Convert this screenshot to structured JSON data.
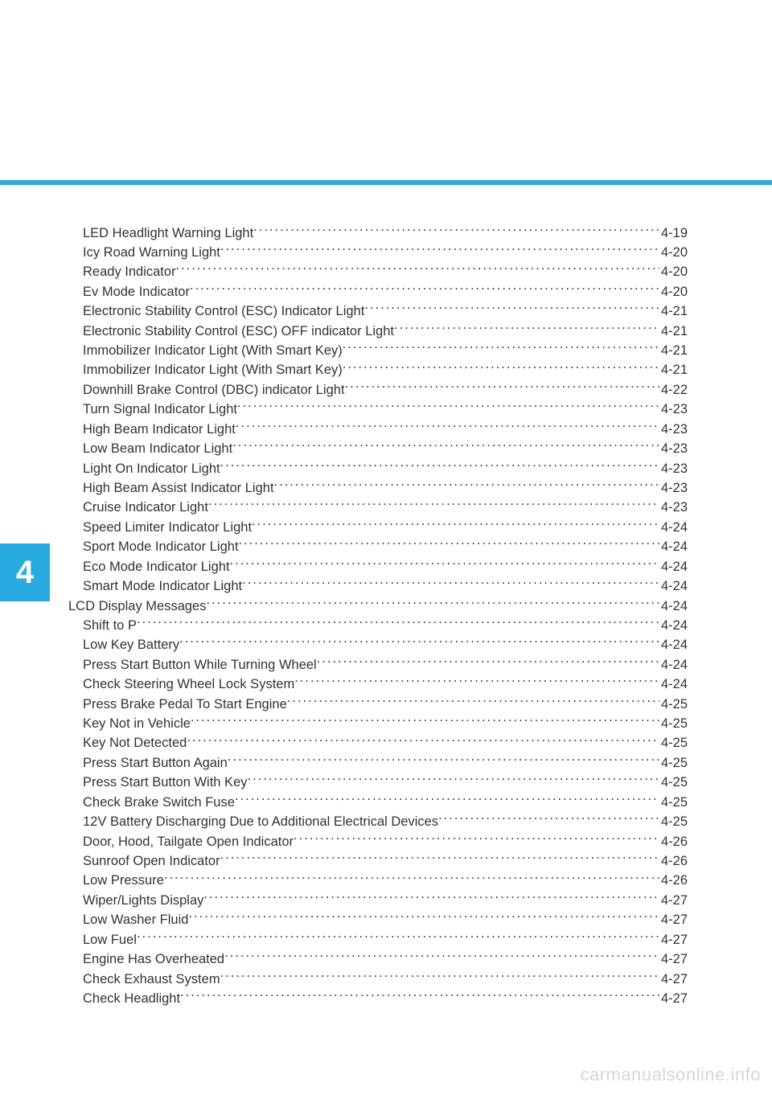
{
  "chapter_number": "4",
  "colors": {
    "accent": "#29abe2",
    "text": "#333333",
    "watermark": "#d6d6d6",
    "background": "#ffffff"
  },
  "watermark": "carmanualsonline.info",
  "toc": [
    {
      "label": "LED Headlight Warning Light",
      "page": "4-19",
      "indent": 2
    },
    {
      "label": "Icy Road Warning Light",
      "page": "4-20",
      "indent": 2
    },
    {
      "label": "Ready Indicator",
      "page": "4-20",
      "indent": 2
    },
    {
      "label": "Ev Mode Indicator",
      "page": "4-20",
      "indent": 2
    },
    {
      "label": "Electronic Stability Control (ESC) Indicator Light",
      "page": "4-21",
      "indent": 2
    },
    {
      "label": "Electronic Stability Control (ESC) OFF indicator Light",
      "page": "4-21",
      "indent": 2
    },
    {
      "label": "Immobilizer Indicator Light (With Smart Key)",
      "page": "4-21",
      "indent": 2
    },
    {
      "label": "Immobilizer Indicator Light (With Smart Key)",
      "page": "4-21",
      "indent": 2
    },
    {
      "label": "Downhill Brake Control (DBC) indicator Light",
      "page": "4-22",
      "indent": 2
    },
    {
      "label": "Turn Signal Indicator Light",
      "page": "4-23",
      "indent": 2
    },
    {
      "label": "High Beam Indicator Light",
      "page": "4-23",
      "indent": 2
    },
    {
      "label": "Low Beam Indicator Light",
      "page": "4-23",
      "indent": 2
    },
    {
      "label": "Light On Indicator Light",
      "page": "4-23",
      "indent": 2
    },
    {
      "label": "High Beam Assist Indicator Light",
      "page": "4-23",
      "indent": 2
    },
    {
      "label": "Cruise Indicator Light",
      "page": "4-23",
      "indent": 2
    },
    {
      "label": "Speed Limiter Indicator Light",
      "page": "4-24",
      "indent": 2
    },
    {
      "label": "Sport Mode Indicator Light",
      "page": "4-24",
      "indent": 2
    },
    {
      "label": "Eco Mode Indicator Light",
      "page": "4-24",
      "indent": 2
    },
    {
      "label": "Smart Mode Indicator Light",
      "page": "4-24",
      "indent": 2
    },
    {
      "label": "LCD Display Messages",
      "page": "4-24",
      "indent": 1
    },
    {
      "label": "Shift to P",
      "page": "4-24",
      "indent": 2
    },
    {
      "label": "Low Key Battery",
      "page": "4-24",
      "indent": 2
    },
    {
      "label": "Press Start Button While Turning Wheel",
      "page": "4-24",
      "indent": 2
    },
    {
      "label": "Check Steering Wheel Lock System",
      "page": "4-24",
      "indent": 2
    },
    {
      "label": "Press Brake Pedal To Start Engine",
      "page": "4-25",
      "indent": 2
    },
    {
      "label": "Key Not in Vehicle",
      "page": "4-25",
      "indent": 2
    },
    {
      "label": "Key Not Detected",
      "page": "4-25",
      "indent": 2
    },
    {
      "label": "Press Start Button Again",
      "page": "4-25",
      "indent": 2
    },
    {
      "label": "Press Start Button With Key",
      "page": "4-25",
      "indent": 2
    },
    {
      "label": "Check Brake Switch Fuse",
      "page": "4-25",
      "indent": 2
    },
    {
      "label": "12V Battery Discharging Due to Additional Electrical Devices",
      "page": "4-25",
      "indent": 2
    },
    {
      "label": "Door, Hood, Tailgate Open Indicator",
      "page": "4-26",
      "indent": 2
    },
    {
      "label": "Sunroof Open Indicator",
      "page": "4-26",
      "indent": 2
    },
    {
      "label": "Low Pressure",
      "page": "4-26",
      "indent": 2
    },
    {
      "label": "Wiper/Lights Display",
      "page": "4-27",
      "indent": 2
    },
    {
      "label": "Low Washer Fluid",
      "page": "4-27",
      "indent": 2
    },
    {
      "label": "Low Fuel",
      "page": "4-27",
      "indent": 2
    },
    {
      "label": "Engine Has Overheated",
      "page": "4-27",
      "indent": 2
    },
    {
      "label": "Check Exhaust System",
      "page": "4-27",
      "indent": 2
    },
    {
      "label": "Check Headlight",
      "page": "4-27",
      "indent": 2
    }
  ]
}
